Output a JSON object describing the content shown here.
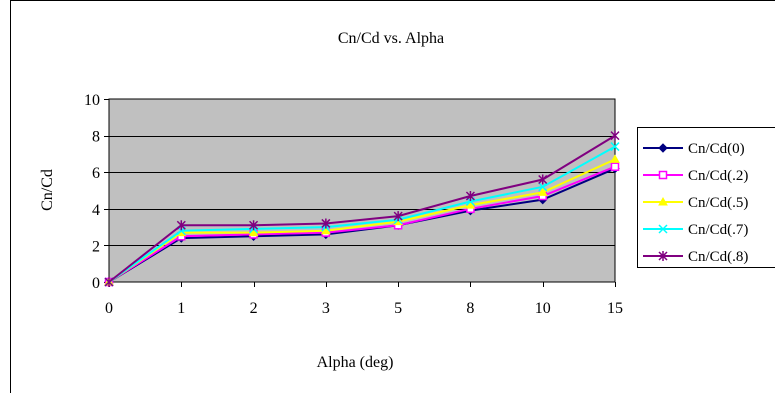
{
  "chart_data": {
    "type": "line",
    "title": "Cn/Cd vs. Alpha",
    "xlabel": "Alpha (deg)",
    "ylabel": "Cn/Cd",
    "categories": [
      "0",
      "1",
      "2",
      "3",
      "5",
      "8",
      "10",
      "15"
    ],
    "ylim": [
      0,
      10
    ],
    "yticks": [
      "0",
      "2",
      "4",
      "6",
      "8",
      "10"
    ],
    "grid": true,
    "legend_position": "right",
    "plot_background": "#c0c0c0",
    "series": [
      {
        "name": "Cn/Cd(0)",
        "color": "#000080",
        "marker": "diamond",
        "values": [
          0,
          2.4,
          2.5,
          2.6,
          3.1,
          3.9,
          4.5,
          6.2
        ]
      },
      {
        "name": "Cn/Cd(.2)",
        "color": "#ff00ff",
        "marker": "square",
        "values": [
          0,
          2.5,
          2.6,
          2.7,
          3.1,
          4.0,
          4.7,
          6.3
        ]
      },
      {
        "name": "Cn/Cd(.5)",
        "color": "#ffff00",
        "marker": "triangle",
        "values": [
          0,
          2.7,
          2.7,
          2.8,
          3.3,
          4.2,
          4.9,
          6.7
        ]
      },
      {
        "name": "Cn/Cd(.7)",
        "color": "#00ffff",
        "marker": "x",
        "values": [
          0,
          2.8,
          2.9,
          3.0,
          3.4,
          4.4,
          5.2,
          7.4
        ]
      },
      {
        "name": "Cn/Cd(.8)",
        "color": "#800080",
        "marker": "star",
        "values": [
          0,
          3.1,
          3.1,
          3.2,
          3.6,
          4.7,
          5.6,
          8.0
        ]
      }
    ]
  }
}
